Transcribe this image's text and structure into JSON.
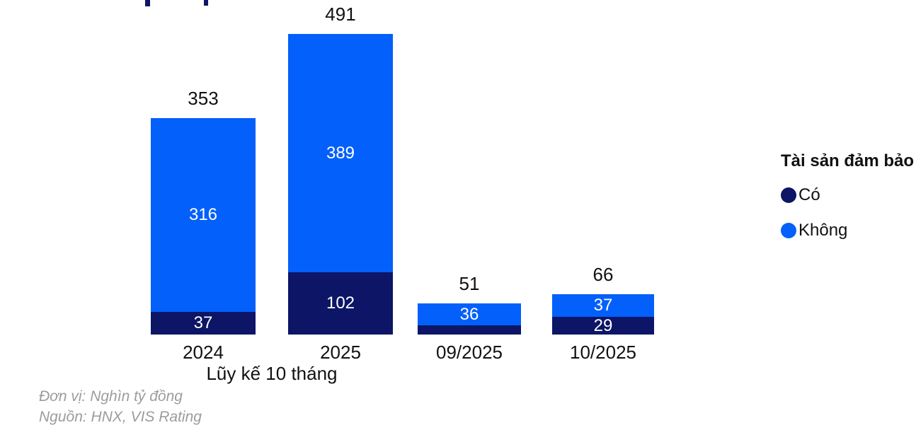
{
  "chart_data": {
    "type": "bar",
    "stacked": true,
    "orientation": "vertical",
    "categories": [
      "2024",
      "2025",
      "09/2025",
      "10/2025"
    ],
    "group_axis_label": "Lũy kế 10 tháng",
    "totals": [
      "353",
      "491",
      "51",
      "66"
    ],
    "series": [
      {
        "name": "Có",
        "color": "#0C1566",
        "values": [
          37,
          102,
          15,
          29
        ],
        "data_labels": [
          "37",
          "102",
          "",
          "29"
        ]
      },
      {
        "name": "Không",
        "color": "#0360FA",
        "values": [
          316,
          389,
          36,
          37
        ],
        "data_labels": [
          "316",
          "389",
          "36",
          "37"
        ]
      }
    ],
    "legend": {
      "title": "Tài sản đảm bảo",
      "position": "right",
      "items": [
        {
          "label": "Có",
          "color": "#0C1566"
        },
        {
          "label": "Không",
          "color": "#0360FA"
        }
      ]
    },
    "axes": {
      "y_axis_hidden": true,
      "gridlines": false
    },
    "footnotes": {
      "unit": "Đơn vị: Nghìn tỷ đồng",
      "source": "Nguồn: HNX, VIS Rating"
    }
  }
}
